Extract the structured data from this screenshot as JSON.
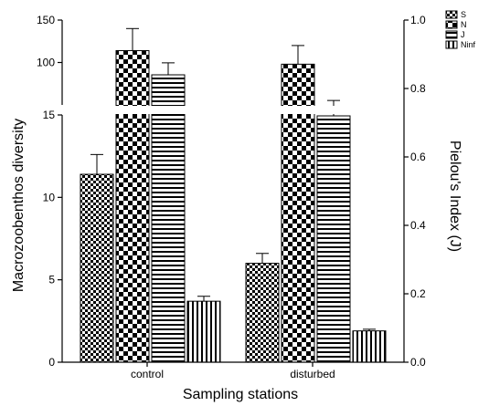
{
  "chart_data": {
    "type": "bar",
    "title": "",
    "xlabel": "Sampling stations",
    "ylabel_left": "Macrozoobenthos diversity",
    "ylabel_right": "Pielou's Index (J)",
    "categories": [
      "control",
      "disturbed"
    ],
    "left_axis": {
      "scale": "broken",
      "lower_segment": {
        "range": [
          0,
          15
        ],
        "ticks": [
          0,
          5,
          10,
          15
        ]
      },
      "upper_segment": {
        "range": [
          50,
          150
        ],
        "ticks": [
          100,
          150
        ]
      },
      "break_between": [
        15,
        50
      ]
    },
    "right_axis": {
      "range": [
        0,
        1.0
      ],
      "ticks": [
        "0.0",
        "0.2",
        "0.4",
        "0.6",
        "0.8",
        "1.0"
      ]
    },
    "series": [
      {
        "name": "S",
        "axis": "left",
        "pattern": "checker-small",
        "values": [
          11.4,
          6.0
        ],
        "errors": [
          1.2,
          0.6
        ]
      },
      {
        "name": "N",
        "axis": "left",
        "pattern": "checker-large",
        "values": [
          114,
          98
        ],
        "errors": [
          26,
          22
        ]
      },
      {
        "name": "J",
        "axis": "right",
        "pattern": "horizontal-lines",
        "values": [
          0.84,
          0.72
        ],
        "errors": [
          0.035,
          0.045
        ]
      },
      {
        "name": "Ninf",
        "axis": "left",
        "pattern": "vertical-lines",
        "values": [
          3.7,
          1.9
        ],
        "errors": [
          0.3,
          0.1
        ]
      }
    ],
    "legend_position": "top-right",
    "grid": false
  }
}
